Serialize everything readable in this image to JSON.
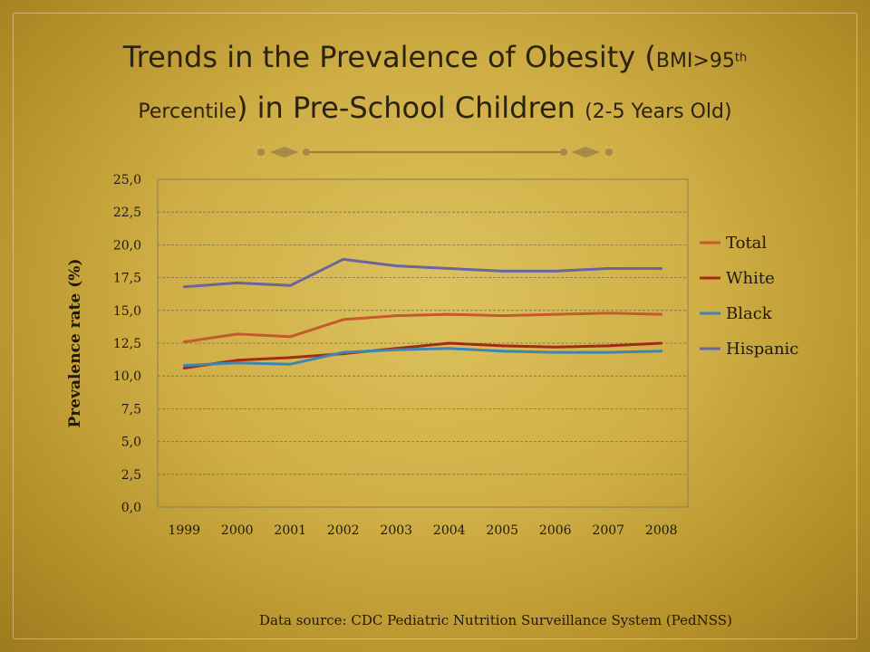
{
  "slide": {
    "title_a": "Trends in the Prevalence of Obesity (",
    "title_b": "BMI>95",
    "title_c": "th",
    "title_d": "Percentile",
    "title_e": ") in Pre-School Children ",
    "title_f": "(2-5 Years Old)",
    "source": "Data source: CDC Pediatric Nutrition Surveillance System (PedNSS)"
  },
  "colors": {
    "Total": "#c65a2e",
    "White": "#a32b16",
    "Black": "#3d86b3",
    "Hispanic": "#6a64a0",
    "grid": "#7a6f55",
    "text": "#1e1a0c"
  },
  "chart_data": {
    "type": "line",
    "title": "",
    "xlabel": "",
    "ylabel": "Prevalence rate (%)",
    "categories": [
      "1999",
      "2000",
      "2001",
      "2002",
      "2003",
      "2004",
      "2005",
      "2006",
      "2007",
      "2008"
    ],
    "ylim": [
      0,
      25
    ],
    "yticks": [
      "0,0",
      "2,5",
      "5,0",
      "7,5",
      "10,0",
      "12,5",
      "15,0",
      "17,5",
      "20,0",
      "22,5",
      "25,0"
    ],
    "grid": true,
    "legend_position": "right",
    "series": [
      {
        "name": "Total",
        "values": [
          12.6,
          13.2,
          13.0,
          14.3,
          14.6,
          14.7,
          14.6,
          14.7,
          14.8,
          14.7
        ]
      },
      {
        "name": "White",
        "values": [
          10.6,
          11.2,
          11.4,
          11.7,
          12.1,
          12.5,
          12.3,
          12.2,
          12.3,
          12.5
        ]
      },
      {
        "name": "Black",
        "values": [
          10.8,
          11.0,
          10.9,
          11.8,
          12.0,
          12.1,
          11.9,
          11.8,
          11.8,
          11.9
        ]
      },
      {
        "name": "Hispanic",
        "values": [
          16.8,
          17.1,
          16.9,
          18.9,
          18.4,
          18.2,
          18.0,
          18.0,
          18.2,
          18.2
        ]
      }
    ]
  }
}
